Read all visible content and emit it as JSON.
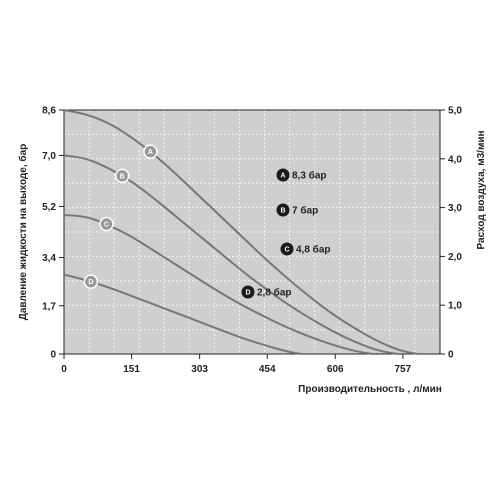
{
  "chart_data": {
    "type": "line",
    "xlabel": "Производительность , л/мин",
    "ylabel": "Давление жидкости на выходе, бар",
    "y2label": "Расход воздуха, м3/мин",
    "xlim": [
      0,
      840
    ],
    "ylim": [
      0,
      8.6
    ],
    "y2lim": [
      0,
      5.0
    ],
    "x_ticks": [
      "0",
      "151",
      "303",
      "454",
      "606",
      "757"
    ],
    "x_tick_values": [
      0,
      151,
      303,
      454,
      606,
      757
    ],
    "y_ticks": [
      "0",
      "1,7",
      "3,4",
      "5,2",
      "7,0",
      "8,6"
    ],
    "y_tick_values": [
      0,
      1.7,
      3.4,
      5.2,
      7.0,
      8.6
    ],
    "y2_ticks": [
      "0",
      "1,0",
      "2,0",
      "3,0",
      "4,0",
      "5,0"
    ],
    "y2_tick_values": [
      0,
      1.0,
      2.0,
      3.0,
      4.0,
      5.0
    ],
    "grid": true,
    "series": [
      {
        "name": "A",
        "label": "A",
        "legend": "8,3 бар",
        "x": [
          0,
          50,
          100,
          150,
          200,
          250,
          300,
          350,
          400,
          450,
          500,
          550,
          600,
          650,
          700,
          750,
          790
        ],
        "y": [
          8.6,
          8.45,
          8.15,
          7.65,
          7.05,
          6.35,
          5.6,
          4.85,
          4.1,
          3.35,
          2.65,
          2.0,
          1.4,
          0.9,
          0.45,
          0.12,
          0
        ]
      },
      {
        "name": "B",
        "label": "B",
        "legend": "7 бар",
        "x": [
          0,
          50,
          100,
          150,
          200,
          250,
          300,
          350,
          400,
          450,
          500,
          550,
          600,
          650,
          700,
          745
        ],
        "y": [
          7.0,
          6.9,
          6.55,
          6.1,
          5.5,
          4.85,
          4.2,
          3.55,
          2.9,
          2.3,
          1.75,
          1.25,
          0.8,
          0.42,
          0.12,
          0
        ]
      },
      {
        "name": "C",
        "label": "C",
        "legend": "4,8 бар",
        "x": [
          0,
          50,
          100,
          150,
          200,
          250,
          300,
          350,
          400,
          450,
          500,
          550,
          600,
          650,
          690
        ],
        "y": [
          4.9,
          4.85,
          4.55,
          4.15,
          3.65,
          3.15,
          2.65,
          2.15,
          1.7,
          1.3,
          0.92,
          0.6,
          0.32,
          0.1,
          0
        ]
      },
      {
        "name": "D",
        "label": "D",
        "legend": "2,8 бар",
        "x": [
          0,
          50,
          100,
          150,
          200,
          250,
          300,
          350,
          400,
          450,
          500,
          530
        ],
        "y": [
          2.8,
          2.6,
          2.35,
          2.05,
          1.75,
          1.45,
          1.15,
          0.85,
          0.55,
          0.3,
          0.08,
          0
        ]
      }
    ],
    "label_positions_x": [
      193,
      130,
      95,
      60
    ],
    "colors": {
      "plot_bg": "#cfcfcf",
      "grid": "#f2f2f2",
      "curve": "#777777",
      "badge_fill": "#999999",
      "legend_badge": "#1a1a1a",
      "axis": "#222222"
    }
  }
}
